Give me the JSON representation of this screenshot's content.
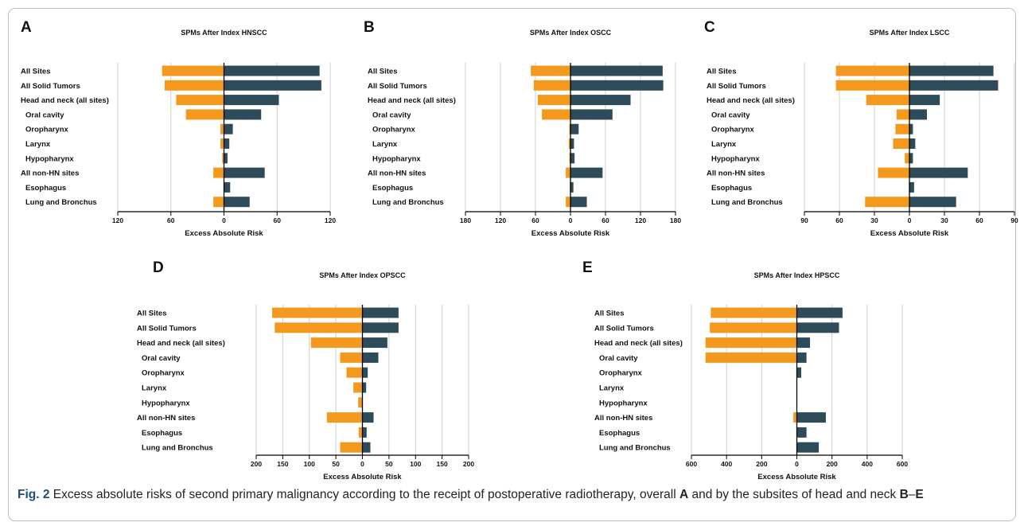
{
  "colors": {
    "orange": "#f39a1e",
    "teal": "#2e4b59",
    "grid": "#cfcfcf",
    "axis": "#000000"
  },
  "categories": [
    "All Sites",
    "All Solid Tumors",
    "Head and neck (all sites)",
    "Oral cavity",
    "Oropharynx",
    "Larynx",
    "Hypopharynx",
    "All non-HN sites",
    "Esophagus",
    "Lung and Bronchus"
  ],
  "xlabel": "Excess Absolute Risk",
  "chart_data": [
    {
      "panel": "A",
      "type": "bar",
      "title": "SPMs After Index HNSCC",
      "xlim": [
        -120,
        120
      ],
      "ticks": [
        -120,
        -60,
        0,
        60,
        120
      ],
      "tick_labels": [
        "120",
        "60",
        "0",
        "60",
        "120"
      ],
      "series": [
        {
          "side": "left",
          "values": [
            -70,
            -67,
            -54,
            -43,
            -4,
            -4,
            -2,
            -12,
            0,
            -12
          ]
        },
        {
          "side": "right",
          "values": [
            108,
            110,
            62,
            42,
            10,
            6,
            4,
            46,
            7,
            29
          ]
        }
      ]
    },
    {
      "panel": "B",
      "type": "bar",
      "title": "SPMs After Index OSCC",
      "xlim": [
        -180,
        180
      ],
      "ticks": [
        -180,
        -120,
        -60,
        0,
        60,
        120,
        180
      ],
      "tick_labels": [
        "180",
        "120",
        "60",
        "0",
        "60",
        "120",
        "180"
      ],
      "series": [
        {
          "side": "left",
          "values": [
            -68,
            -63,
            -56,
            -49,
            -2,
            -3,
            -2,
            -8,
            -1,
            -8
          ]
        },
        {
          "side": "right",
          "values": [
            158,
            159,
            103,
            72,
            14,
            6,
            7,
            55,
            5,
            28
          ]
        }
      ]
    },
    {
      "panel": "C",
      "type": "bar",
      "title": "SPMs After Index LSCC",
      "xlim": [
        -90,
        90
      ],
      "ticks": [
        -90,
        -60,
        -30,
        0,
        30,
        60,
        90
      ],
      "tick_labels": [
        "90",
        "60",
        "30",
        "0",
        "30",
        "60",
        "90"
      ],
      "series": [
        {
          "side": "left",
          "values": [
            -63,
            -63,
            -37,
            -11,
            -12,
            -14,
            -4,
            -27,
            0,
            -38
          ]
        },
        {
          "side": "right",
          "values": [
            72,
            76,
            26,
            15,
            3,
            5,
            3,
            50,
            4,
            40
          ]
        }
      ]
    },
    {
      "panel": "D",
      "type": "bar",
      "title": "SPMs After Index OPSCC",
      "xlim": [
        -200,
        200
      ],
      "ticks": [
        -200,
        -150,
        -100,
        -50,
        0,
        50,
        100,
        150,
        200
      ],
      "tick_labels": [
        "200",
        "150",
        "100",
        "50",
        "0",
        "50",
        "100",
        "150",
        "200"
      ],
      "series": [
        {
          "side": "left",
          "values": [
            -170,
            -165,
            -97,
            -42,
            -30,
            -17,
            -8,
            -67,
            -7,
            -42
          ]
        },
        {
          "side": "right",
          "values": [
            68,
            68,
            47,
            30,
            10,
            7,
            0,
            21,
            8,
            15
          ]
        }
      ]
    },
    {
      "panel": "E",
      "type": "bar",
      "title": "SPMs After Index HPSCC",
      "xlim": [
        -600,
        600
      ],
      "ticks": [
        -600,
        -400,
        -200,
        0,
        200,
        400,
        600
      ],
      "tick_labels": [
        "600",
        "400",
        "200",
        "0",
        "200",
        "400",
        "600"
      ],
      "series": [
        {
          "side": "left",
          "values": [
            -490,
            -495,
            -520,
            -520,
            0,
            0,
            0,
            -20,
            0,
            0
          ]
        },
        {
          "side": "right",
          "values": [
            260,
            240,
            75,
            55,
            25,
            0,
            0,
            165,
            55,
            125
          ]
        }
      ]
    }
  ],
  "caption": {
    "fig_label": "Fig. 2",
    "text1": "  Excess absolute risks of second primary malignancy according to the receipt of postoperative radiotherapy, overall ",
    "bold1": "A",
    "text2": " and by the subsites of head and neck ",
    "bold2": "B",
    "dash": "–",
    "bold3": "E"
  }
}
